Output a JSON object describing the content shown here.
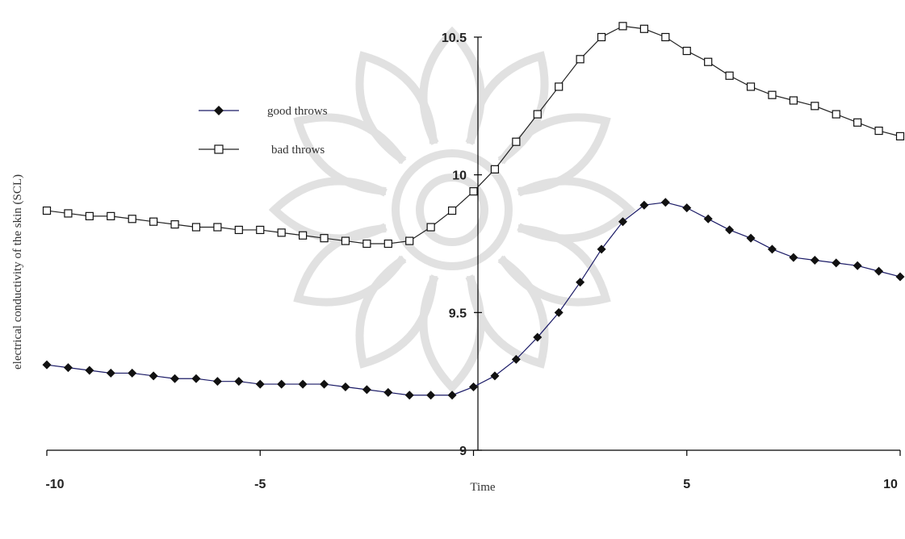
{
  "chart_data": {
    "type": "line",
    "title": "",
    "xlabel": "Time",
    "ylabel": "electrical conductivity of the skin (SCL)",
    "xlim": [
      -10,
      10
    ],
    "ylim": [
      9,
      10.5
    ],
    "x_ticks": [
      -10,
      -5,
      0,
      5,
      10
    ],
    "x_tick_labels": [
      "-10",
      "-5",
      "0",
      "5",
      "10"
    ],
    "y_ticks": [
      9,
      9.5,
      10,
      10.5
    ],
    "y_tick_labels": [
      "9",
      "9.5",
      "10",
      "10.5"
    ],
    "grid": false,
    "legend_position": "top-left",
    "series": [
      {
        "name": "good throws",
        "color": "#1a1a66",
        "marker": "filled-diamond",
        "x": [
          -10,
          -9.5,
          -9,
          -8.5,
          -8,
          -7.5,
          -7,
          -6.5,
          -6,
          -5.5,
          -5,
          -4.5,
          -4,
          -3.5,
          -3,
          -2.5,
          -2,
          -1.5,
          -1,
          -0.5,
          0,
          0.5,
          1,
          1.5,
          2,
          2.5,
          3,
          3.5,
          4,
          4.5,
          5,
          5.5,
          6,
          6.5,
          7,
          7.5,
          8,
          8.5,
          9,
          9.5,
          10
        ],
        "y": [
          9.31,
          9.3,
          9.29,
          9.28,
          9.28,
          9.27,
          9.26,
          9.26,
          9.25,
          9.25,
          9.24,
          9.24,
          9.24,
          9.24,
          9.23,
          9.22,
          9.21,
          9.2,
          9.2,
          9.2,
          9.23,
          9.27,
          9.33,
          9.41,
          9.5,
          9.61,
          9.73,
          9.83,
          9.89,
          9.9,
          9.88,
          9.84,
          9.8,
          9.77,
          9.73,
          9.7,
          9.69,
          9.68,
          9.67,
          9.65,
          9.63
        ]
      },
      {
        "name": "bad throws",
        "color": "#222222",
        "marker": "open-square",
        "x": [
          -10,
          -9.5,
          -9,
          -8.5,
          -8,
          -7.5,
          -7,
          -6.5,
          -6,
          -5.5,
          -5,
          -4.5,
          -4,
          -3.5,
          -3,
          -2.5,
          -2,
          -1.5,
          -1,
          -0.5,
          0,
          0.5,
          1,
          1.5,
          2,
          2.5,
          3,
          3.5,
          4,
          4.5,
          5,
          5.5,
          6,
          6.5,
          7,
          7.5,
          8,
          8.5,
          9,
          9.5,
          10
        ],
        "y": [
          9.87,
          9.86,
          9.85,
          9.85,
          9.84,
          9.83,
          9.82,
          9.81,
          9.81,
          9.8,
          9.8,
          9.79,
          9.78,
          9.77,
          9.76,
          9.75,
          9.75,
          9.76,
          9.81,
          9.87,
          9.94,
          10.02,
          10.12,
          10.22,
          10.32,
          10.42,
          10.5,
          10.54,
          10.53,
          10.5,
          10.45,
          10.41,
          10.36,
          10.32,
          10.29,
          10.27,
          10.25,
          10.22,
          10.19,
          10.16,
          10.14
        ]
      }
    ]
  }
}
